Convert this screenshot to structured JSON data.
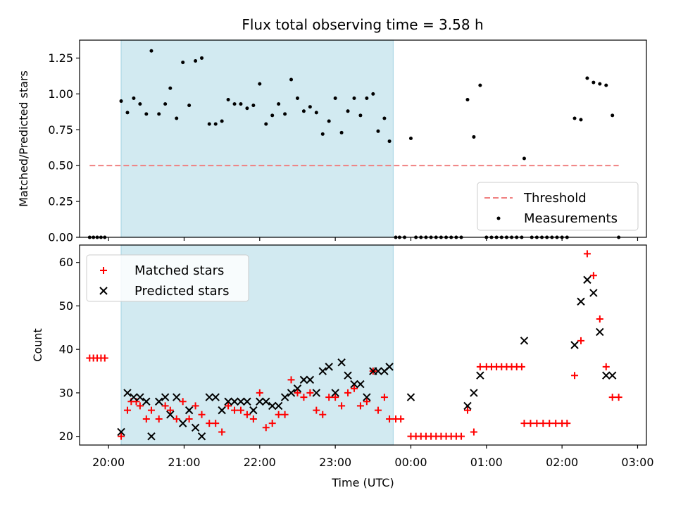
{
  "title": "Flux total observing time = 3.58 h",
  "colors": {
    "span": "#add8e6",
    "threshold": "#f08080",
    "measurements": "#000000",
    "matched": "#ff0000",
    "predicted": "#000000"
  },
  "chart_data": [
    {
      "type": "scatter",
      "panel": "top",
      "ylabel": "Matched/Predicted stars",
      "xlabel": "",
      "ylim": [
        0,
        1.375
      ],
      "yticks": [
        0.0,
        0.25,
        0.5,
        0.75,
        1.0,
        1.25
      ],
      "ytick_labels": [
        "0.00",
        "0.25",
        "0.50",
        "0.75",
        "1.00",
        "1.25"
      ],
      "xlim": [
        "19:37",
        "03:07"
      ],
      "xtick_labels": [
        "20:00",
        "21:00",
        "22:00",
        "23:00",
        "00:00",
        "01:00",
        "02:00",
        "03:00"
      ],
      "shaded_span": [
        "20:10",
        "23:46"
      ],
      "threshold": {
        "name": "Threshold",
        "value": 0.5,
        "x_range": [
          "19:45",
          "02:45"
        ]
      },
      "legend_position": "lower-right",
      "series": [
        {
          "name": "Measurements",
          "points": [
            [
              "19:45",
              0
            ],
            [
              "19:48",
              0
            ],
            [
              "19:51",
              0
            ],
            [
              "19:54",
              0
            ],
            [
              "19:57",
              0
            ],
            [
              "20:10",
              0.95
            ],
            [
              "20:15",
              0.87
            ],
            [
              "20:20",
              0.97
            ],
            [
              "20:25",
              0.93
            ],
            [
              "20:30",
              0.86
            ],
            [
              "20:34",
              1.3
            ],
            [
              "20:40",
              0.86
            ],
            [
              "20:45",
              0.93
            ],
            [
              "20:49",
              1.04
            ],
            [
              "20:54",
              0.83
            ],
            [
              "20:59",
              1.22
            ],
            [
              "21:04",
              0.92
            ],
            [
              "21:09",
              1.23
            ],
            [
              "21:14",
              1.25
            ],
            [
              "21:20",
              0.79
            ],
            [
              "21:25",
              0.79
            ],
            [
              "21:30",
              0.81
            ],
            [
              "21:35",
              0.96
            ],
            [
              "21:40",
              0.93
            ],
            [
              "21:45",
              0.93
            ],
            [
              "21:50",
              0.9
            ],
            [
              "21:55",
              0.92
            ],
            [
              "22:00",
              1.07
            ],
            [
              "22:05",
              0.79
            ],
            [
              "22:10",
              0.85
            ],
            [
              "22:15",
              0.93
            ],
            [
              "22:20",
              0.86
            ],
            [
              "22:25",
              1.1
            ],
            [
              "22:30",
              0.97
            ],
            [
              "22:35",
              0.88
            ],
            [
              "22:40",
              0.91
            ],
            [
              "22:45",
              0.87
            ],
            [
              "22:50",
              0.72
            ],
            [
              "22:55",
              0.81
            ],
            [
              "23:00",
              0.97
            ],
            [
              "23:05",
              0.73
            ],
            [
              "23:10",
              0.88
            ],
            [
              "23:15",
              0.97
            ],
            [
              "23:20",
              0.85
            ],
            [
              "23:25",
              0.97
            ],
            [
              "23:30",
              1.0
            ],
            [
              "23:34",
              0.74
            ],
            [
              "23:39",
              0.83
            ],
            [
              "23:43",
              0.67
            ],
            [
              "23:48",
              0
            ],
            [
              "23:51",
              0
            ],
            [
              "23:55",
              0
            ],
            [
              "00:00",
              0.69
            ],
            [
              "00:04",
              0
            ],
            [
              "00:08",
              0
            ],
            [
              "00:12",
              0
            ],
            [
              "00:16",
              0
            ],
            [
              "00:20",
              0
            ],
            [
              "00:24",
              0
            ],
            [
              "00:28",
              0
            ],
            [
              "00:32",
              0
            ],
            [
              "00:36",
              0
            ],
            [
              "00:40",
              0
            ],
            [
              "00:45",
              0.96
            ],
            [
              "00:50",
              0.7
            ],
            [
              "00:55",
              1.06
            ],
            [
              "01:00",
              0
            ],
            [
              "01:04",
              0
            ],
            [
              "01:08",
              0
            ],
            [
              "01:12",
              0
            ],
            [
              "01:16",
              0
            ],
            [
              "01:20",
              0
            ],
            [
              "01:24",
              0
            ],
            [
              "01:28",
              0
            ],
            [
              "01:30",
              0.55
            ],
            [
              "01:36",
              0
            ],
            [
              "01:40",
              0
            ],
            [
              "01:44",
              0
            ],
            [
              "01:48",
              0
            ],
            [
              "01:52",
              0
            ],
            [
              "01:56",
              0
            ],
            [
              "02:00",
              0
            ],
            [
              "02:04",
              0
            ],
            [
              "02:10",
              0.83
            ],
            [
              "02:15",
              0.82
            ],
            [
              "02:20",
              1.11
            ],
            [
              "02:25",
              1.08
            ],
            [
              "02:30",
              1.07
            ],
            [
              "02:35",
              1.06
            ],
            [
              "02:40",
              0.85
            ],
            [
              "02:45",
              0
            ]
          ]
        }
      ]
    },
    {
      "type": "scatter",
      "panel": "bottom",
      "ylabel": "Count",
      "xlabel": "Time (UTC)",
      "ylim": [
        18,
        64
      ],
      "yticks": [
        20,
        30,
        40,
        50,
        60
      ],
      "ytick_labels": [
        "20",
        "30",
        "40",
        "50",
        "60"
      ],
      "xlim": [
        "19:37",
        "03:07"
      ],
      "xtick_labels": [
        "20:00",
        "21:00",
        "22:00",
        "23:00",
        "00:00",
        "01:00",
        "02:00",
        "03:00"
      ],
      "shaded_span": [
        "20:10",
        "23:46"
      ],
      "legend_position": "upper-left",
      "series": [
        {
          "name": "Matched stars",
          "marker": "+",
          "points": [
            [
              "19:45",
              38
            ],
            [
              "19:48",
              38
            ],
            [
              "19:51",
              38
            ],
            [
              "19:54",
              38
            ],
            [
              "19:57",
              38
            ],
            [
              "20:10",
              20
            ],
            [
              "20:15",
              26
            ],
            [
              "20:18",
              28
            ],
            [
              "20:22",
              28
            ],
            [
              "20:25",
              27
            ],
            [
              "20:30",
              24
            ],
            [
              "20:34",
              26
            ],
            [
              "20:40",
              24
            ],
            [
              "20:45",
              27
            ],
            [
              "20:49",
              26
            ],
            [
              "20:54",
              24
            ],
            [
              "20:59",
              28
            ],
            [
              "21:04",
              24
            ],
            [
              "21:09",
              27
            ],
            [
              "21:14",
              25
            ],
            [
              "21:20",
              23
            ],
            [
              "21:25",
              23
            ],
            [
              "21:30",
              21
            ],
            [
              "21:35",
              27
            ],
            [
              "21:40",
              26
            ],
            [
              "21:45",
              26
            ],
            [
              "21:50",
              25
            ],
            [
              "21:55",
              24
            ],
            [
              "22:00",
              30
            ],
            [
              "22:05",
              22
            ],
            [
              "22:10",
              23
            ],
            [
              "22:15",
              25
            ],
            [
              "22:20",
              25
            ],
            [
              "22:25",
              33
            ],
            [
              "22:30",
              30
            ],
            [
              "22:35",
              29
            ],
            [
              "22:40",
              30
            ],
            [
              "22:45",
              26
            ],
            [
              "22:50",
              25
            ],
            [
              "22:55",
              29
            ],
            [
              "23:00",
              29
            ],
            [
              "23:05",
              27
            ],
            [
              "23:10",
              30
            ],
            [
              "23:15",
              31
            ],
            [
              "23:20",
              27
            ],
            [
              "23:25",
              28
            ],
            [
              "23:30",
              35
            ],
            [
              "23:34",
              26
            ],
            [
              "23:39",
              29
            ],
            [
              "23:43",
              24
            ],
            [
              "23:48",
              24
            ],
            [
              "23:52",
              24
            ],
            [
              "00:00",
              20
            ],
            [
              "00:04",
              20
            ],
            [
              "00:08",
              20
            ],
            [
              "00:12",
              20
            ],
            [
              "00:16",
              20
            ],
            [
              "00:20",
              20
            ],
            [
              "00:24",
              20
            ],
            [
              "00:28",
              20
            ],
            [
              "00:32",
              20
            ],
            [
              "00:36",
              20
            ],
            [
              "00:40",
              20
            ],
            [
              "00:45",
              26
            ],
            [
              "00:50",
              21
            ],
            [
              "00:55",
              36
            ],
            [
              "01:00",
              36
            ],
            [
              "01:04",
              36
            ],
            [
              "01:08",
              36
            ],
            [
              "01:12",
              36
            ],
            [
              "01:16",
              36
            ],
            [
              "01:20",
              36
            ],
            [
              "01:24",
              36
            ],
            [
              "01:28",
              36
            ],
            [
              "01:30",
              23
            ],
            [
              "01:35",
              23
            ],
            [
              "01:40",
              23
            ],
            [
              "01:45",
              23
            ],
            [
              "01:50",
              23
            ],
            [
              "01:55",
              23
            ],
            [
              "02:00",
              23
            ],
            [
              "02:04",
              23
            ],
            [
              "02:10",
              34
            ],
            [
              "02:15",
              42
            ],
            [
              "02:20",
              62
            ],
            [
              "02:25",
              57
            ],
            [
              "02:30",
              47
            ],
            [
              "02:35",
              36
            ],
            [
              "02:40",
              29
            ],
            [
              "02:45",
              29
            ]
          ]
        },
        {
          "name": "Predicted stars",
          "marker": "x",
          "points": [
            [
              "20:10",
              21
            ],
            [
              "20:15",
              30
            ],
            [
              "20:20",
              29
            ],
            [
              "20:25",
              29
            ],
            [
              "20:30",
              28
            ],
            [
              "20:34",
              20
            ],
            [
              "20:40",
              28
            ],
            [
              "20:45",
              29
            ],
            [
              "20:49",
              25
            ],
            [
              "20:54",
              29
            ],
            [
              "20:59",
              23
            ],
            [
              "21:04",
              26
            ],
            [
              "21:09",
              22
            ],
            [
              "21:14",
              20
            ],
            [
              "21:20",
              29
            ],
            [
              "21:25",
              29
            ],
            [
              "21:30",
              26
            ],
            [
              "21:35",
              28
            ],
            [
              "21:40",
              28
            ],
            [
              "21:45",
              28
            ],
            [
              "21:50",
              28
            ],
            [
              "21:55",
              26
            ],
            [
              "22:00",
              28
            ],
            [
              "22:05",
              28
            ],
            [
              "22:10",
              27
            ],
            [
              "22:15",
              27
            ],
            [
              "22:20",
              29
            ],
            [
              "22:25",
              30
            ],
            [
              "22:30",
              31
            ],
            [
              "22:35",
              33
            ],
            [
              "22:40",
              33
            ],
            [
              "22:45",
              30
            ],
            [
              "22:50",
              35
            ],
            [
              "22:55",
              36
            ],
            [
              "23:00",
              30
            ],
            [
              "23:05",
              37
            ],
            [
              "23:10",
              34
            ],
            [
              "23:15",
              32
            ],
            [
              "23:20",
              32
            ],
            [
              "23:25",
              29
            ],
            [
              "23:30",
              35
            ],
            [
              "23:34",
              35
            ],
            [
              "23:39",
              35
            ],
            [
              "23:43",
              36
            ],
            [
              "00:00",
              29
            ],
            [
              "00:45",
              27
            ],
            [
              "00:50",
              30
            ],
            [
              "00:55",
              34
            ],
            [
              "01:30",
              42
            ],
            [
              "02:10",
              41
            ],
            [
              "02:15",
              51
            ],
            [
              "02:20",
              56
            ],
            [
              "02:25",
              53
            ],
            [
              "02:30",
              44
            ],
            [
              "02:35",
              34
            ],
            [
              "02:40",
              34
            ]
          ]
        }
      ]
    }
  ]
}
